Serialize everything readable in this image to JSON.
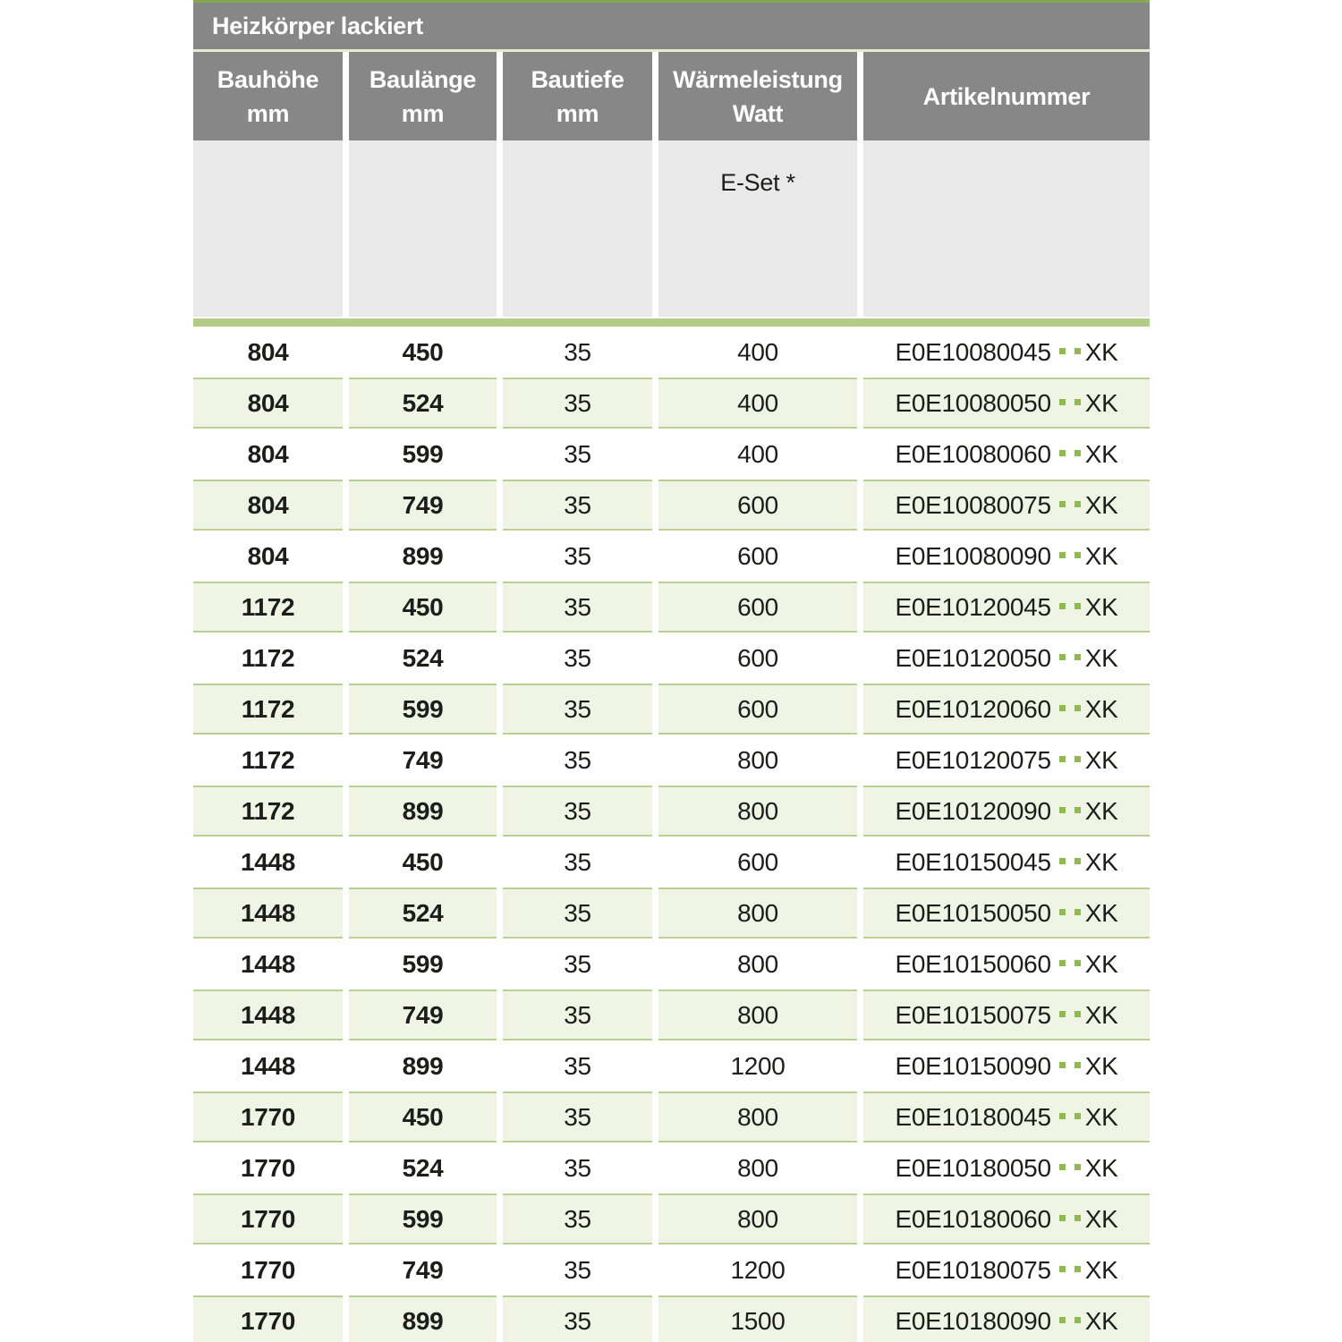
{
  "table": {
    "title": "Heizkörper lackiert",
    "columns": [
      {
        "label": "Bauhöhe",
        "unit": "mm"
      },
      {
        "label": "Baulänge",
        "unit": "mm"
      },
      {
        "label": "Bautiefe",
        "unit": "mm"
      },
      {
        "label": "Wärmeleistung",
        "unit": "Watt"
      },
      {
        "label": "Artikelnummer",
        "unit": ""
      }
    ],
    "subheader": {
      "eset_label": "E-Set *"
    },
    "rows": [
      {
        "bauhoehe": "804",
        "baulaenge": "450",
        "bautiefe": "35",
        "watt": "400",
        "article_base": "E0E10080045",
        "article_suffix": "XK"
      },
      {
        "bauhoehe": "804",
        "baulaenge": "524",
        "bautiefe": "35",
        "watt": "400",
        "article_base": "E0E10080050",
        "article_suffix": "XK"
      },
      {
        "bauhoehe": "804",
        "baulaenge": "599",
        "bautiefe": "35",
        "watt": "400",
        "article_base": "E0E10080060",
        "article_suffix": "XK"
      },
      {
        "bauhoehe": "804",
        "baulaenge": "749",
        "bautiefe": "35",
        "watt": "600",
        "article_base": "E0E10080075",
        "article_suffix": "XK"
      },
      {
        "bauhoehe": "804",
        "baulaenge": "899",
        "bautiefe": "35",
        "watt": "600",
        "article_base": "E0E10080090",
        "article_suffix": "XK"
      },
      {
        "bauhoehe": "1172",
        "baulaenge": "450",
        "bautiefe": "35",
        "watt": "600",
        "article_base": "E0E10120045",
        "article_suffix": "XK"
      },
      {
        "bauhoehe": "1172",
        "baulaenge": "524",
        "bautiefe": "35",
        "watt": "600",
        "article_base": "E0E10120050",
        "article_suffix": "XK"
      },
      {
        "bauhoehe": "1172",
        "baulaenge": "599",
        "bautiefe": "35",
        "watt": "600",
        "article_base": "E0E10120060",
        "article_suffix": "XK"
      },
      {
        "bauhoehe": "1172",
        "baulaenge": "749",
        "bautiefe": "35",
        "watt": "800",
        "article_base": "E0E10120075",
        "article_suffix": "XK"
      },
      {
        "bauhoehe": "1172",
        "baulaenge": "899",
        "bautiefe": "35",
        "watt": "800",
        "article_base": "E0E10120090",
        "article_suffix": "XK"
      },
      {
        "bauhoehe": "1448",
        "baulaenge": "450",
        "bautiefe": "35",
        "watt": "600",
        "article_base": "E0E10150045",
        "article_suffix": "XK"
      },
      {
        "bauhoehe": "1448",
        "baulaenge": "524",
        "bautiefe": "35",
        "watt": "800",
        "article_base": "E0E10150050",
        "article_suffix": "XK"
      },
      {
        "bauhoehe": "1448",
        "baulaenge": "599",
        "bautiefe": "35",
        "watt": "800",
        "article_base": "E0E10150060",
        "article_suffix": "XK"
      },
      {
        "bauhoehe": "1448",
        "baulaenge": "749",
        "bautiefe": "35",
        "watt": "800",
        "article_base": "E0E10150075",
        "article_suffix": "XK"
      },
      {
        "bauhoehe": "1448",
        "baulaenge": "899",
        "bautiefe": "35",
        "watt": "1200",
        "article_base": "E0E10150090",
        "article_suffix": "XK"
      },
      {
        "bauhoehe": "1770",
        "baulaenge": "450",
        "bautiefe": "35",
        "watt": "800",
        "article_base": "E0E10180045",
        "article_suffix": "XK"
      },
      {
        "bauhoehe": "1770",
        "baulaenge": "524",
        "bautiefe": "35",
        "watt": "800",
        "article_base": "E0E10180050",
        "article_suffix": "XK"
      },
      {
        "bauhoehe": "1770",
        "baulaenge": "599",
        "bautiefe": "35",
        "watt": "800",
        "article_base": "E0E10180060",
        "article_suffix": "XK"
      },
      {
        "bauhoehe": "1770",
        "baulaenge": "749",
        "bautiefe": "35",
        "watt": "1200",
        "article_base": "E0E10180075",
        "article_suffix": "XK"
      },
      {
        "bauhoehe": "1770",
        "baulaenge": "899",
        "bautiefe": "35",
        "watt": "1500",
        "article_base": "E0E10180090",
        "article_suffix": "XK"
      }
    ]
  },
  "colors": {
    "header_gray": "#878787",
    "subheader_gray": "#e9e9e9",
    "accent_green": "#85a854",
    "divider_green": "#b3cc87",
    "row_green_bg": "#eff4e4",
    "row_border_green": "#b9cf94",
    "dot_green": "#8fba50",
    "text_black": "#1d1d1b",
    "text_white": "#ffffff"
  }
}
